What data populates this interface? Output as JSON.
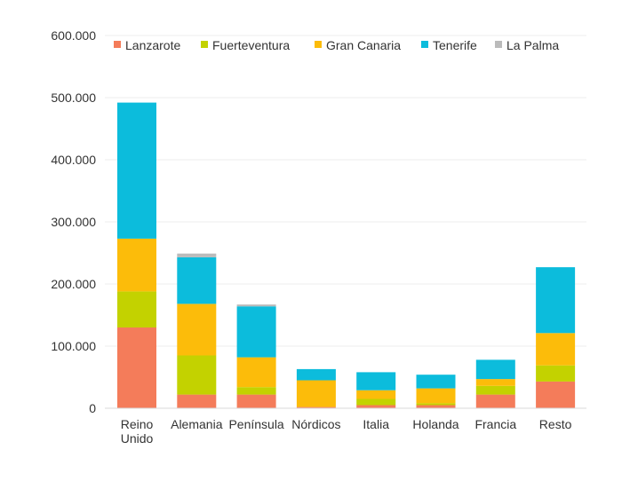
{
  "chart_data": {
    "type": "bar",
    "stacked": true,
    "categories": [
      "Reino Unido",
      "Alemania",
      "Península",
      "Nórdicos",
      "Italia",
      "Holanda",
      "Francia",
      "Resto"
    ],
    "category_lines": [
      [
        "Reino",
        "Unido"
      ],
      [
        "Alemania"
      ],
      [
        "Península"
      ],
      [
        "Nórdicos"
      ],
      [
        "Italia"
      ],
      [
        "Holanda"
      ],
      [
        "Francia"
      ],
      [
        "Resto"
      ]
    ],
    "series": [
      {
        "name": "Lanzarote",
        "color": "#f47c5a",
        "values": [
          130000,
          22000,
          22000,
          2000,
          5000,
          5000,
          22000,
          43000
        ]
      },
      {
        "name": "Fuerteventura",
        "color": "#c3d200",
        "values": [
          58000,
          63000,
          12000,
          0,
          10000,
          3000,
          14000,
          26000
        ]
      },
      {
        "name": "Gran Canaria",
        "color": "#fcbc0a",
        "values": [
          85000,
          83000,
          48000,
          43000,
          14000,
          24000,
          11000,
          52000
        ]
      },
      {
        "name": "Tenerife",
        "color": "#0cbcdc",
        "values": [
          219000,
          75000,
          82000,
          18000,
          29000,
          22000,
          31000,
          106000
        ]
      },
      {
        "name": "La Palma",
        "color": "#bbbbbb",
        "values": [
          0,
          6000,
          3000,
          0,
          0,
          0,
          0,
          0
        ]
      }
    ],
    "y_ticks": [
      "0",
      "100.000",
      "200.000",
      "300.000",
      "400.000",
      "500.000",
      "600.000"
    ],
    "ylim": [
      0,
      600000
    ],
    "grid": true,
    "legend_position": "top"
  }
}
